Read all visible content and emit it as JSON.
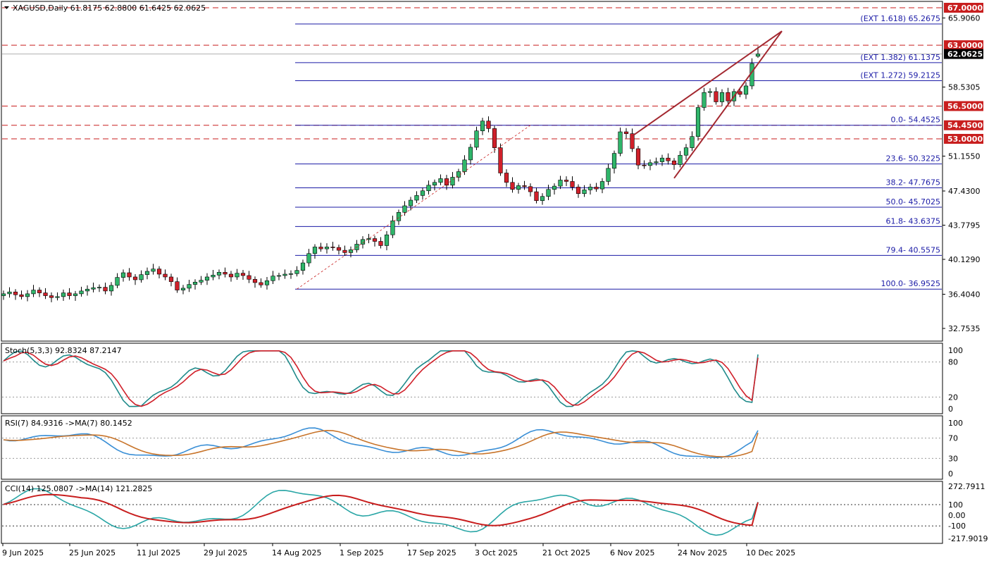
{
  "header": {
    "symbol_info": "XAGUSD,Daily  61.8175 62.8800 61.6425 62.0625"
  },
  "panels": {
    "stoch": {
      "label": "Stoch(5,3,3) 92.8324 87.2147",
      "ticks": [
        "100",
        "80",
        "20",
        "0"
      ]
    },
    "rsi": {
      "label": "RSI(7) 84.9316  ->MA(7) 80.1452",
      "ticks": [
        "100",
        "70",
        "30",
        "0"
      ]
    },
    "cci": {
      "label": "CCI(14) 125.0807  ->MA(14) 121.2825",
      "ticks": [
        "272.7911",
        "100",
        "0.00",
        "-100",
        "-217.9019"
      ]
    }
  },
  "price_axis": {
    "ticks": [
      "65.9060",
      "58.5305",
      "51.1550",
      "47.4300",
      "43.7795",
      "40.1290",
      "36.4040",
      "32.7535"
    ]
  },
  "time_axis": {
    "ticks": [
      "9 Jun 2025",
      "25 Jun 2025",
      "11 Jul 2025",
      "29 Jul 2025",
      "14 Aug 2025",
      "1 Sep 2025",
      "17 Sep 2025",
      "3 Oct 2025",
      "21 Oct 2025",
      "6 Nov 2025",
      "24 Nov 2025",
      "10 Dec 2025"
    ]
  },
  "levels": {
    "horizontal": [
      {
        "value": 67.0,
        "label": "67.0000"
      },
      {
        "value": 63.0,
        "label": "63.0000"
      },
      {
        "value": 56.5,
        "label": "56.5000"
      },
      {
        "value": 54.45,
        "label": "54.4500"
      },
      {
        "value": 53.0,
        "label": "53.0000"
      }
    ],
    "current_price": {
      "value": 62.0625,
      "label": "62.0625"
    }
  },
  "fibonacci": [
    {
      "value": 65.2675,
      "label": "(EXT 1.618)  65.2675"
    },
    {
      "value": 61.1375,
      "label": "(EXT 1.382)  61.1375"
    },
    {
      "value": 59.2125,
      "label": "(EXT 1.272)  59.2125"
    },
    {
      "value": 54.4525,
      "label": "0.0- 54.4525"
    },
    {
      "value": 50.3225,
      "label": "23.6- 50.3225"
    },
    {
      "value": 47.7675,
      "label": "38.2- 47.7675"
    },
    {
      "value": 45.7025,
      "label": "50.0- 45.7025"
    },
    {
      "value": 43.6375,
      "label": "61.8- 43.6375"
    },
    {
      "value": 40.5575,
      "label": "79.4- 40.5575"
    },
    {
      "value": 36.9525,
      "label": "100.0- 36.9525"
    }
  ],
  "colors": {
    "bull": "#2fb56a",
    "bear": "#d0202a",
    "fib": "#1a1aa6",
    "level": "#c81e1e",
    "stoch_main": "#1f8a8a",
    "stoch_signal": "#d0202a",
    "rsi_main": "#3a8fd6",
    "rsi_ma": "#c8742a",
    "cci_main": "#2aa6a6",
    "cci_ma": "#c81e1e",
    "wedge": "#a32830"
  },
  "chart_data": {
    "type": "candlestick",
    "symbol": "XAGUSD",
    "timeframe": "Daily",
    "last_bar": {
      "open": 61.8175,
      "high": 62.88,
      "low": 61.6425,
      "close": 62.0625
    },
    "price_axis_range": [
      30.9,
      67.9
    ],
    "closes": [
      36.45,
      36.65,
      36.35,
      36.15,
      36.45,
      36.85,
      36.55,
      36.25,
      36.05,
      36.15,
      36.55,
      36.25,
      36.45,
      36.75,
      36.95,
      37.1,
      37.15,
      36.75,
      37.35,
      38.2,
      38.7,
      38.25,
      37.95,
      38.5,
      38.85,
      39.1,
      38.55,
      38.25,
      37.75,
      36.85,
      37.05,
      37.45,
      37.7,
      37.9,
      38.25,
      38.45,
      38.75,
      38.55,
      38.25,
      38.65,
      38.4,
      38.0,
      37.65,
      37.4,
      37.85,
      38.35,
      38.4,
      38.55,
      38.6,
      38.95,
      39.75,
      40.75,
      41.45,
      41.25,
      41.45,
      41.4,
      41.1,
      40.85,
      41.15,
      41.75,
      42.25,
      42.35,
      42.05,
      41.6,
      42.75,
      44.25,
      45.15,
      45.85,
      46.45,
      46.95,
      47.45,
      48.05,
      48.35,
      48.75,
      48.05,
      48.9,
      49.5,
      50.75,
      52.1,
      53.85,
      54.9,
      54.1,
      52.05,
      49.35,
      48.35,
      47.6,
      48.0,
      47.9,
      47.35,
      46.4,
      46.85,
      47.6,
      47.95,
      48.6,
      48.45,
      47.85,
      47.15,
      47.55,
      47.85,
      47.65,
      48.45,
      49.85,
      51.45,
      53.75,
      53.55,
      51.95,
      50.2,
      50.15,
      50.45,
      50.55,
      50.95,
      50.65,
      50.25,
      51.25,
      52.05,
      53.25,
      56.35,
      57.95,
      58.05,
      56.95,
      57.95,
      57.05,
      58.05,
      57.75,
      58.65,
      61.05,
      62.06
    ],
    "stochastic": {
      "params": "5,3,3",
      "main": 92.8324,
      "signal": 87.2147,
      "levels": [
        80,
        20
      ]
    },
    "rsi": {
      "period": 7,
      "value": 84.9316,
      "ma_period": 7,
      "ma_value": 80.1452,
      "levels": [
        70,
        30
      ]
    },
    "cci": {
      "period": 14,
      "value": 125.0807,
      "ma_period": 14,
      "ma_value": 121.2825,
      "levels": [
        100,
        -100
      ]
    }
  }
}
